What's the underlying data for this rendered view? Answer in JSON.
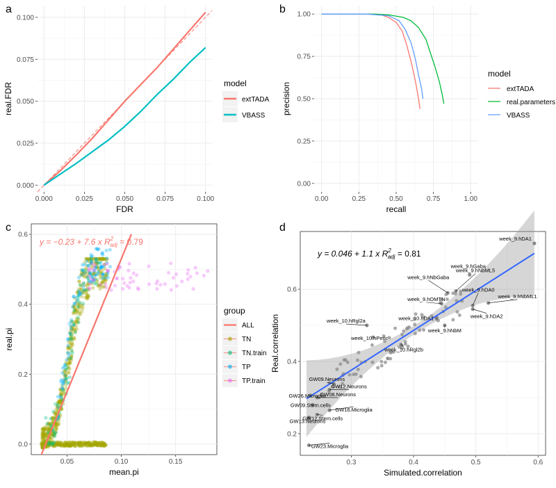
{
  "panels": {
    "a": {
      "letter": "a",
      "chart_data": {
        "type": "line",
        "xlabel": "FDR",
        "ylabel": "real.FDR",
        "xlim": [
          -0.004,
          0.104
        ],
        "ylim": [
          -0.004,
          0.107
        ],
        "xticks": [
          0,
          0.025,
          0.05,
          0.075,
          0.1
        ],
        "xtick_labels": [
          "0.000",
          "0.025",
          "0.050",
          "0.075",
          "0.100"
        ],
        "yticks": [
          0,
          0.025,
          0.05,
          0.075,
          0.1
        ],
        "ytick_labels": [
          "0.000",
          "0.025",
          "0.050",
          "0.075",
          "0.100"
        ],
        "legend_title": "model",
        "reference_line": {
          "name": "identity",
          "style": "dashed",
          "color": "#F8766D"
        },
        "series": [
          {
            "name": "extTADA",
            "color": "#F8766D",
            "x": [
              0,
              0.01,
              0.02,
              0.03,
              0.04,
              0.05,
              0.06,
              0.07,
              0.08,
              0.09,
              0.1
            ],
            "y": [
              0,
              0.0085,
              0.018,
              0.028,
              0.039,
              0.05,
              0.06,
              0.07,
              0.081,
              0.092,
              0.103
            ]
          },
          {
            "name": "VBASS",
            "color": "#00BFC4",
            "x": [
              0,
              0.01,
              0.02,
              0.03,
              0.04,
              0.05,
              0.06,
              0.07,
              0.08,
              0.09,
              0.1
            ],
            "y": [
              0,
              0.0065,
              0.013,
              0.02,
              0.027,
              0.035,
              0.044,
              0.054,
              0.063,
              0.073,
              0.082
            ]
          }
        ]
      }
    },
    "b": {
      "letter": "b",
      "chart_data": {
        "type": "line",
        "xlabel": "recall",
        "ylabel": "precision",
        "xlim": [
          -0.05,
          1.05
        ],
        "ylim": [
          -0.05,
          1.05
        ],
        "xticks": [
          0,
          0.25,
          0.5,
          0.75,
          1
        ],
        "xtick_labels": [
          "0.00",
          "0.25",
          "0.50",
          "0.75",
          "1.00"
        ],
        "yticks": [
          0,
          0.25,
          0.5,
          0.75,
          1
        ],
        "ytick_labels": [
          "0.00",
          "0.25",
          "0.50",
          "0.75",
          "1.00"
        ],
        "legend_title": "model",
        "series": [
          {
            "name": "extTADA",
            "color": "#F8766D",
            "x": [
              0,
              0.3,
              0.4,
              0.45,
              0.5,
              0.54,
              0.57,
              0.6,
              0.63,
              0.65,
              0.66
            ],
            "y": [
              1,
              1,
              0.995,
              0.98,
              0.95,
              0.9,
              0.82,
              0.72,
              0.6,
              0.5,
              0.44
            ]
          },
          {
            "name": "real.parameters",
            "color": "#00BA38",
            "x": [
              0,
              0.35,
              0.45,
              0.55,
              0.6,
              0.65,
              0.7,
              0.73,
              0.76,
              0.79,
              0.81,
              0.82
            ],
            "y": [
              1,
              1,
              0.995,
              0.98,
              0.96,
              0.92,
              0.85,
              0.77,
              0.69,
              0.6,
              0.52,
              0.47
            ]
          },
          {
            "name": "VBASS",
            "color": "#619CFF",
            "x": [
              0,
              0.3,
              0.45,
              0.52,
              0.56,
              0.6,
              0.63,
              0.65,
              0.67,
              0.68
            ],
            "y": [
              1,
              1,
              0.99,
              0.96,
              0.91,
              0.83,
              0.73,
              0.64,
              0.56,
              0.5
            ]
          }
        ]
      }
    },
    "c": {
      "letter": "c",
      "chart_data": {
        "type": "scatter",
        "xlabel": "mean.pi",
        "ylabel": "real.pi",
        "xlim": [
          0.017,
          0.188
        ],
        "ylim": [
          -0.03,
          0.63
        ],
        "xticks": [
          0.05,
          0.1,
          0.15
        ],
        "xtick_labels": [
          "0.05",
          "0.10",
          "0.15"
        ],
        "yticks": [
          0,
          0.2,
          0.4,
          0.6
        ],
        "ytick_labels": [
          "0.0",
          "0.2",
          "0.4",
          "0.6"
        ],
        "legend_title": "group",
        "groups": [
          {
            "name": "ALL",
            "color": "#F8766D"
          },
          {
            "name": "TN",
            "color": "#A3A500"
          },
          {
            "name": "TN.train",
            "color": "#00BF7D"
          },
          {
            "name": "TP",
            "color": "#00B0F6"
          },
          {
            "name": "TP.train",
            "color": "#E76BF3"
          }
        ],
        "fit": {
          "intercept": -0.23,
          "slope": 7.6,
          "r2_adj": 0.79,
          "color": "#F8766D",
          "eq_text": "y = −0.23 + 7.6 x",
          "r2_prefix": "R",
          "r2_sub": "adj",
          "r2_sup": "2",
          "r2_text": " = 0.79"
        },
        "annotation": "dense band of points increasing from mean.pi 0.03 to 0.09; most TN points near real.pi 0 with spread up to 0.5; TP.train points near 0.5 for mean.pi 0.08-0.18"
      }
    },
    "d": {
      "letter": "d",
      "chart_data": {
        "type": "scatter",
        "xlabel": "Simulated.correlation",
        "ylabel": "Real.correlation",
        "xlim": [
          0.218,
          0.612
        ],
        "ylim": [
          0.14,
          0.76
        ],
        "xticks": [
          0.3,
          0.4,
          0.5,
          0.6
        ],
        "xtick_labels": [
          "0.3",
          "0.4",
          "0.5",
          "0.6"
        ],
        "yticks": [
          0.2,
          0.4,
          0.6
        ],
        "ytick_labels": [
          "0.2",
          "0.4",
          "0.6"
        ],
        "fit": {
          "intercept": 0.046,
          "slope": 1.1,
          "r2_adj": 0.81,
          "color": "#3366FF",
          "eq_text": "y = 0.046 + 1.1 x",
          "r2_prefix": "R",
          "r2_sub": "adj",
          "r2_sup": "2",
          "r2_text": " = 0.81"
        },
        "labeled_points": [
          {
            "label": "week_9.hDA1",
            "x": 0.594,
            "y": 0.727
          },
          {
            "label": "week_9.hGaba",
            "x": 0.49,
            "y": 0.64
          },
          {
            "label": "week_9.hNbGaba",
            "x": 0.455,
            "y": 0.59
          },
          {
            "label": "week_9.hNbML5",
            "x": 0.468,
            "y": 0.595
          },
          {
            "label": "week_9.hOMTN",
            "x": 0.445,
            "y": 0.56
          },
          {
            "label": "week_9.hDA0",
            "x": 0.495,
            "y": 0.555
          },
          {
            "label": "week_9.hNbML1",
            "x": 0.52,
            "y": 0.562
          },
          {
            "label": "week_10.hDA1",
            "x": 0.437,
            "y": 0.52
          },
          {
            "label": "week_9.hDA2",
            "x": 0.495,
            "y": 0.545
          },
          {
            "label": "week_10.hRgl2a",
            "x": 0.325,
            "y": 0.5
          },
          {
            "label": "week_9.hNbM",
            "x": 0.45,
            "y": 0.5
          },
          {
            "label": "week_10.hPeric",
            "x": 0.335,
            "y": 0.467
          },
          {
            "label": "week_10.hRgl2b",
            "x": 0.38,
            "y": 0.447
          },
          {
            "label": "GW09.Neurons",
            "x": 0.272,
            "y": 0.338
          },
          {
            "label": "GW12.Neurons",
            "x": 0.265,
            "y": 0.322
          },
          {
            "label": "GW26.Microglia",
            "x": 0.235,
            "y": 0.306
          },
          {
            "label": "GW08.Neurons",
            "x": 0.245,
            "y": 0.3
          },
          {
            "label": "GW09.Stem.cells",
            "x": 0.238,
            "y": 0.28
          },
          {
            "label": "GW16.Microglia",
            "x": 0.265,
            "y": 0.265
          },
          {
            "label": "GW12.Stem.cells",
            "x": 0.245,
            "y": 0.253
          },
          {
            "label": "GW13.Neurons",
            "x": 0.232,
            "y": 0.245
          },
          {
            "label": "GW23.Microglia",
            "x": 0.232,
            "y": 0.168
          }
        ]
      }
    }
  }
}
